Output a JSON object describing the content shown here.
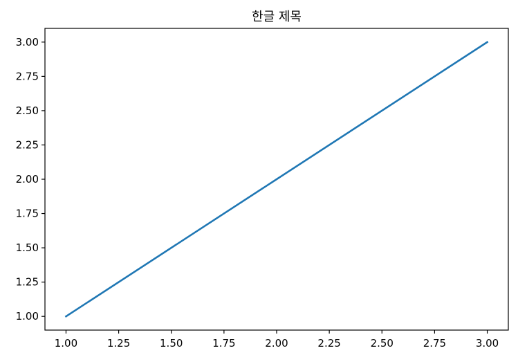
{
  "chart_data": {
    "type": "line",
    "title": "한글 제목",
    "xlabel": "",
    "ylabel": "",
    "xlim": [
      0.9,
      3.1
    ],
    "ylim": [
      0.9,
      3.1
    ],
    "x_ticks": [
      1.0,
      1.25,
      1.5,
      1.75,
      2.0,
      2.25,
      2.5,
      2.75,
      3.0
    ],
    "x_tick_labels": [
      "1.00",
      "1.25",
      "1.50",
      "1.75",
      "2.00",
      "2.25",
      "2.50",
      "2.75",
      "3.00"
    ],
    "y_ticks": [
      1.0,
      1.25,
      1.5,
      1.75,
      2.0,
      2.25,
      2.5,
      2.75,
      3.0
    ],
    "y_tick_labels": [
      "1.00",
      "1.25",
      "1.50",
      "1.75",
      "2.00",
      "2.25",
      "2.50",
      "2.75",
      "3.00"
    ],
    "grid": false,
    "series": [
      {
        "color": "#1f77b4",
        "x": [
          1,
          2,
          3
        ],
        "y": [
          1,
          2,
          3
        ]
      }
    ]
  }
}
